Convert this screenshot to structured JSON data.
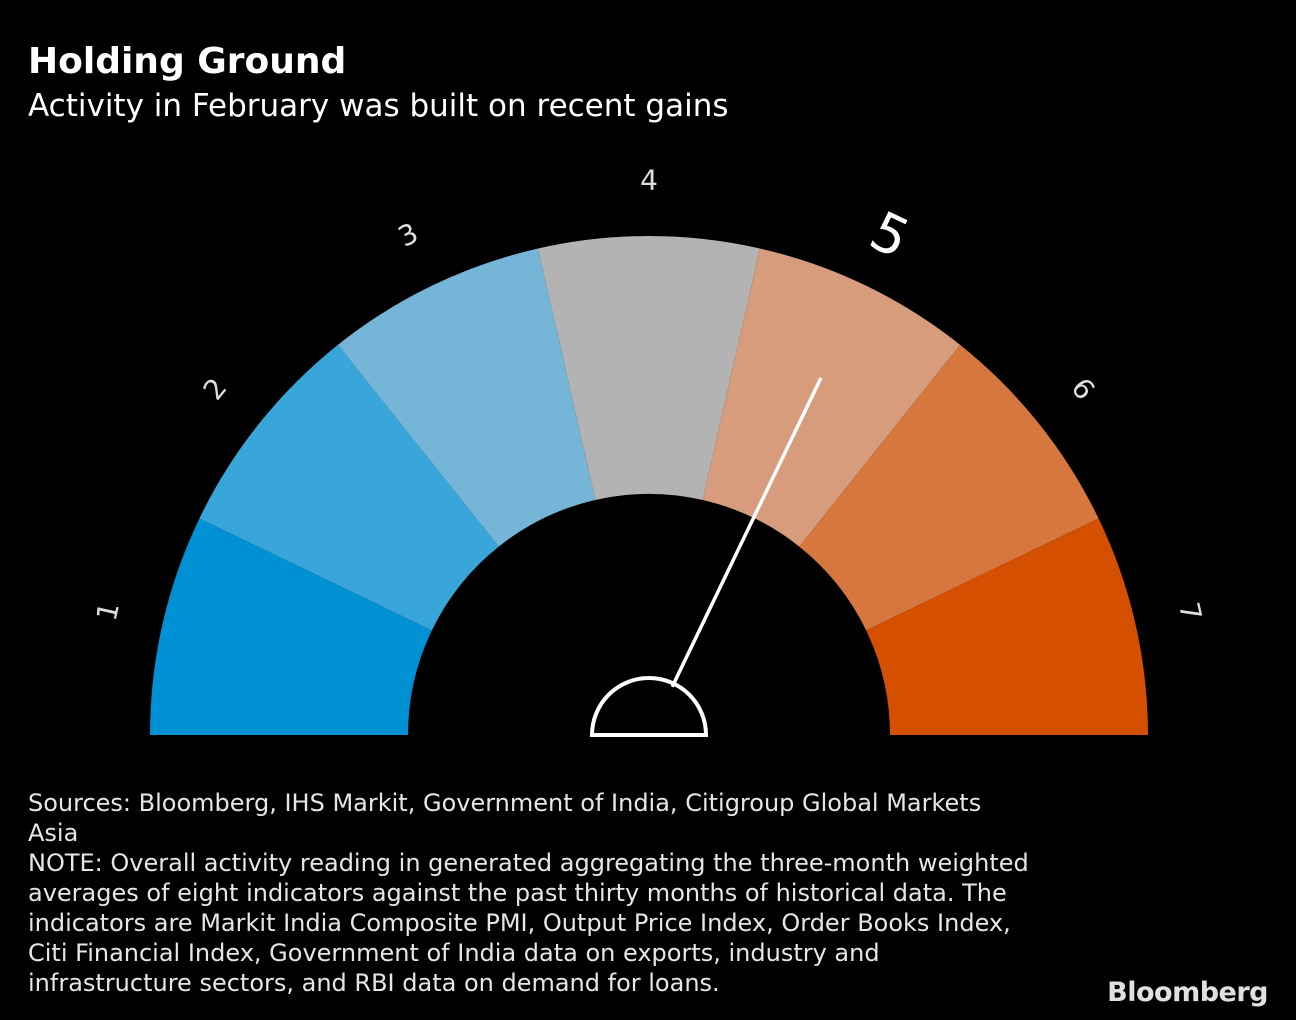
{
  "header": {
    "title": "Holding Ground",
    "subtitle": "Activity in February was built on recent gains"
  },
  "chart_data": {
    "type": "gauge",
    "scale": [
      1,
      7
    ],
    "value": 5,
    "highlighted_label": "5",
    "segments": [
      {
        "label": "1",
        "color": "#0090d4"
      },
      {
        "label": "2",
        "color": "#39a6d9"
      },
      {
        "label": "3",
        "color": "#75b5d8"
      },
      {
        "label": "4",
        "color": "#b3b3b3"
      },
      {
        "label": "5",
        "color": "#d79c7b"
      },
      {
        "label": "6",
        "color": "#d5773e"
      },
      {
        "label": "7",
        "color": "#d54f00"
      }
    ],
    "needle_value": 5.0
  },
  "footer": {
    "sources": "Sources: Bloomberg, IHS Markit, Government of India, Citigroup Global Markets\nAsia",
    "note": "NOTE: Overall activity reading in generated aggregating the three-month weighted\naverages of eight indicators against the past thirty months of historical data. The\nindicators are Markit India Composite PMI, Output Price Index, Order Books Index,\nCiti Financial Index, Government of India data on exports, industry and\ninfrastructure sectors, and RBI data on demand for loans."
  },
  "branding": {
    "logo": "Bloomberg"
  }
}
